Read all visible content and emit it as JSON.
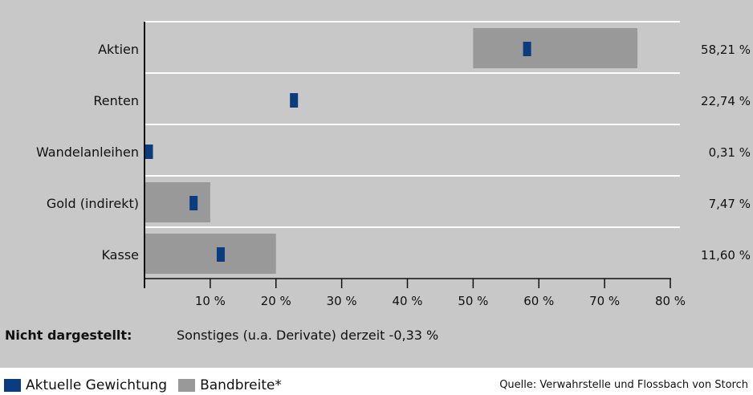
{
  "chart_data": {
    "type": "bar",
    "orientation": "horizontal",
    "categories": [
      "Aktien",
      "Renten",
      "Wandelanleihen",
      "Gold (indirekt)",
      "Kasse"
    ],
    "series": [
      {
        "name": "Aktuelle Gewichtung",
        "values": [
          58.21,
          22.74,
          0.31,
          7.47,
          11.6
        ],
        "labels": [
          "58,21 %",
          "22,74 %",
          "0,31 %",
          "7,47 %",
          "11,60 %"
        ],
        "color": "#0b3c7d"
      },
      {
        "name": "Bandbreite*",
        "ranges": [
          [
            50,
            75
          ],
          null,
          null,
          [
            0,
            10
          ],
          [
            0,
            20
          ]
        ],
        "color": "#999999"
      }
    ],
    "xticks": [
      "10 %",
      "20 %",
      "30 %",
      "40 %",
      "50 %",
      "60 %",
      "70 %",
      "80 %"
    ],
    "xtick_values": [
      10,
      20,
      30,
      40,
      50,
      60,
      70,
      80
    ],
    "xlim": [
      0,
      80
    ],
    "grid": true,
    "legend_position": "bottom-left"
  },
  "note": {
    "title": "Nicht dargestellt:",
    "text": "Sonstiges (u.a. Derivate) derzeit  -0,33 %"
  },
  "legend": {
    "current": "Aktuelle Gewichtung",
    "range": "Bandbreite*"
  },
  "source": "Quelle: Verwahrstelle und Flossbach von Storch",
  "colors": {
    "background": "#c8c8c8",
    "current": "#0b3c7d",
    "range": "#999999",
    "grid": "#ffffff"
  }
}
